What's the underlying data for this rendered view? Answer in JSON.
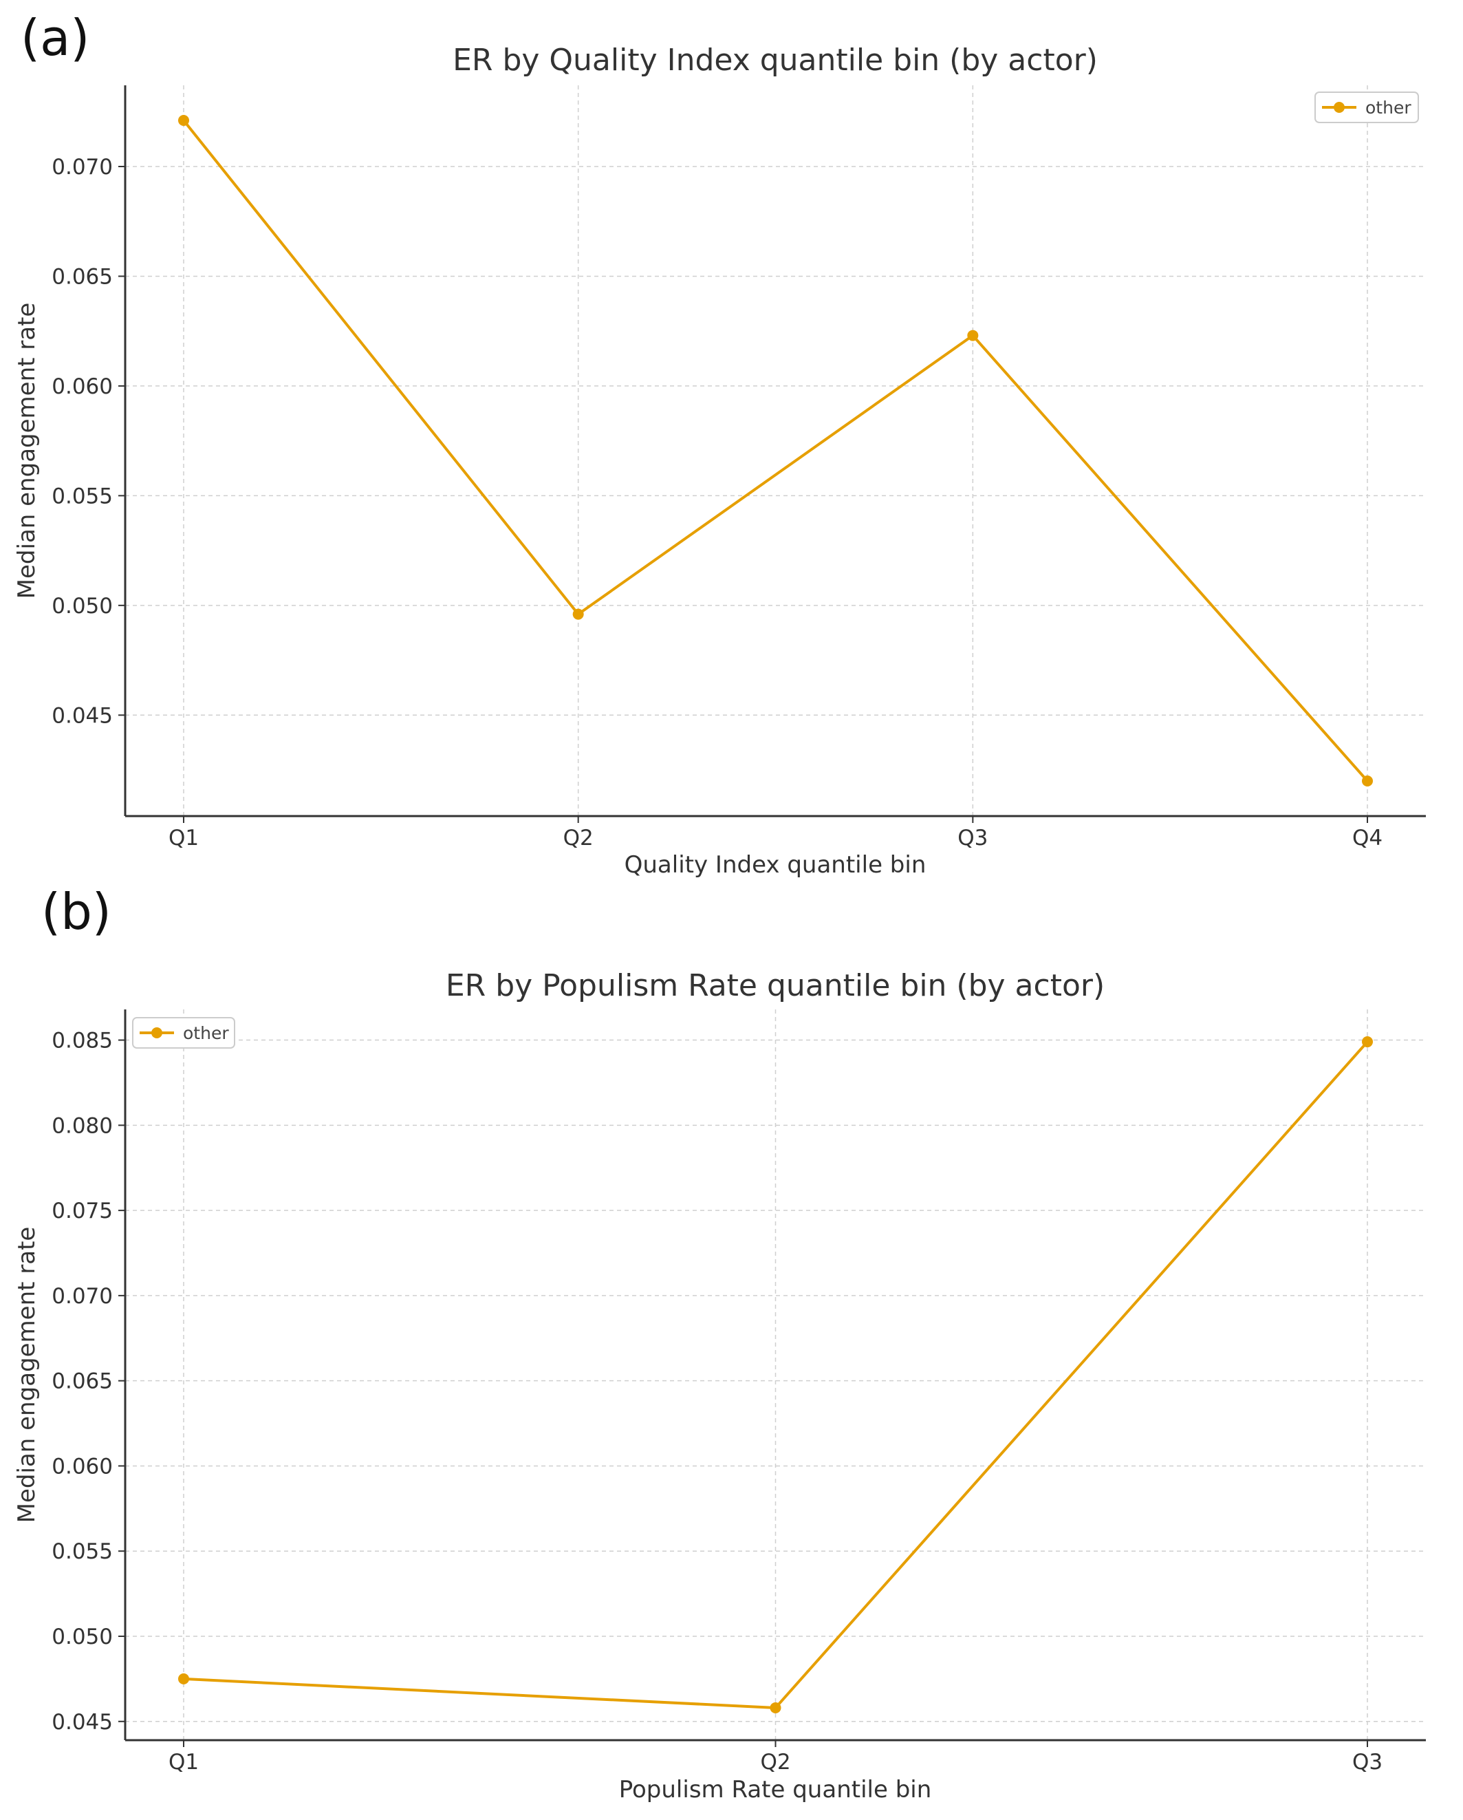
{
  "chart_data": [
    {
      "panel_label": "(a)",
      "type": "line",
      "title": "ER by Quality Index quantile bin (by actor)",
      "xlabel": "Quality Index quantile bin",
      "ylabel": "Median engagement rate",
      "categories": [
        "Q1",
        "Q2",
        "Q3",
        "Q4"
      ],
      "series": [
        {
          "name": "other",
          "color": "#E69F00",
          "values": [
            0.0721,
            0.0496,
            0.0623,
            0.042
          ]
        }
      ],
      "ylim": [
        0.0404,
        0.0737
      ],
      "yticks": [
        0.045,
        0.05,
        0.055,
        0.06,
        0.065,
        0.07
      ],
      "ytick_labels": [
        "0.045",
        "0.050",
        "0.055",
        "0.060",
        "0.065",
        "0.070"
      ],
      "grid": true,
      "legend_position": "top-right"
    },
    {
      "panel_label": "(b)",
      "type": "line",
      "title": "ER by Populism Rate quantile bin (by actor)",
      "xlabel": "Populism Rate quantile bin",
      "ylabel": "Median engagement rate",
      "categories": [
        "Q1",
        "Q2",
        "Q3"
      ],
      "series": [
        {
          "name": "other",
          "color": "#E69F00",
          "values": [
            0.0475,
            0.0458,
            0.0849
          ]
        }
      ],
      "ylim": [
        0.0439,
        0.0868
      ],
      "yticks": [
        0.045,
        0.05,
        0.055,
        0.06,
        0.065,
        0.07,
        0.075,
        0.08,
        0.085
      ],
      "ytick_labels": [
        "0.045",
        "0.050",
        "0.055",
        "0.060",
        "0.065",
        "0.070",
        "0.075",
        "0.080",
        "0.085"
      ],
      "grid": true,
      "legend_position": "top-left"
    }
  ]
}
